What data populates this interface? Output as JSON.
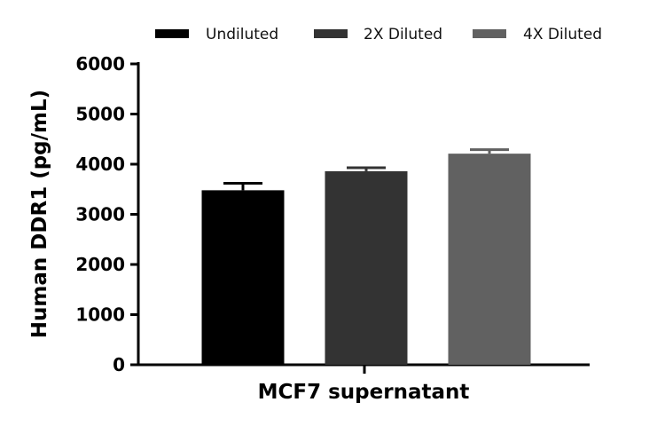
{
  "chart_data": {
    "type": "bar",
    "title": "",
    "xlabel": "MCF7 supernatant",
    "ylabel": "Human DDR1 (pg/mL)",
    "categories": [
      "MCF7 supernatant"
    ],
    "ylim": [
      0,
      6000
    ],
    "yticks": [
      "0",
      "1000",
      "2000",
      "3000",
      "4000",
      "5000",
      "6000"
    ],
    "legend_position": "top",
    "grid": false,
    "series": [
      {
        "name": "Undiluted",
        "values": [
          3480
        ],
        "error": [
          140
        ],
        "color": "#000000"
      },
      {
        "name": "2X Diluted",
        "values": [
          3860
        ],
        "error": [
          70
        ],
        "color": "#333333"
      },
      {
        "name": "4X Diluted",
        "values": [
          4210
        ],
        "error": [
          80
        ],
        "color": "#616161"
      }
    ]
  }
}
